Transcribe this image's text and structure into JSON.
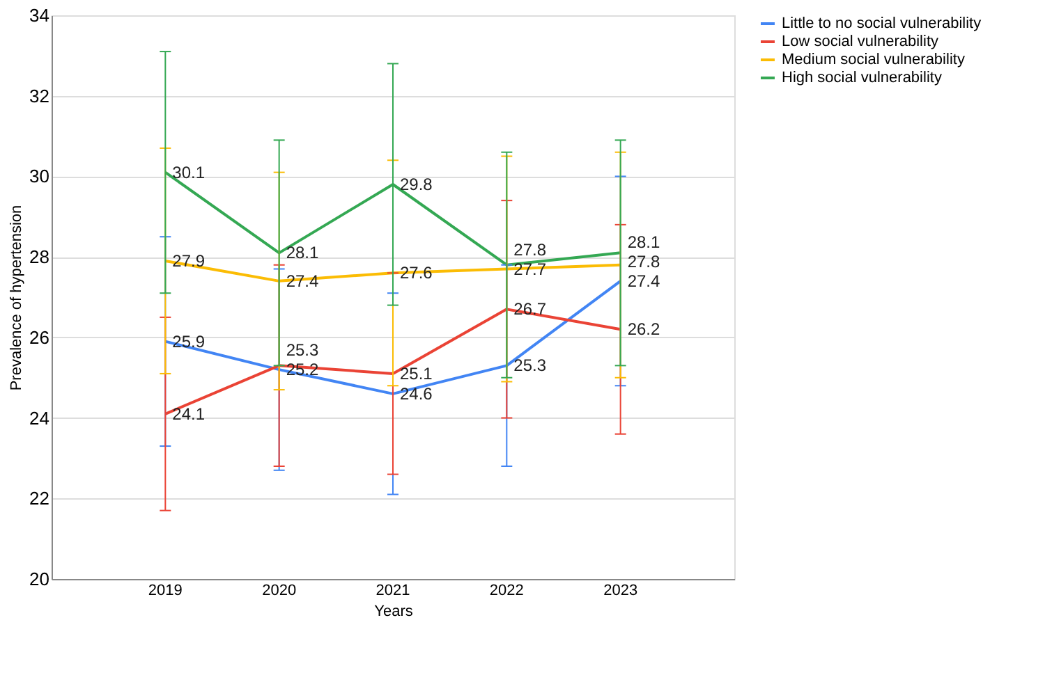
{
  "chart_data": {
    "type": "line",
    "xlabel": "Years",
    "ylabel": "Prevalence of hypertension",
    "categories": [
      "2019",
      "2020",
      "2021",
      "2022",
      "2023"
    ],
    "series": [
      {
        "name": "Little to no social vulnerability",
        "color": "#4285f4",
        "values": [
          25.9,
          25.2,
          24.6,
          25.3,
          27.4
        ],
        "errors": [
          2.6,
          2.5,
          2.5,
          2.5,
          2.6
        ]
      },
      {
        "name": "Low social vulnerability",
        "color": "#ea4335",
        "values": [
          24.1,
          25.3,
          25.1,
          26.7,
          26.2
        ],
        "errors": [
          2.4,
          2.5,
          2.5,
          2.7,
          2.6
        ]
      },
      {
        "name": "Medium social vulnerability",
        "color": "#fbbc04",
        "values": [
          27.9,
          27.4,
          27.6,
          27.7,
          27.8
        ],
        "errors": [
          2.8,
          2.7,
          2.8,
          2.8,
          2.8
        ]
      },
      {
        "name": "High social vulnerability",
        "color": "#34a853",
        "values": [
          30.1,
          28.1,
          29.8,
          27.8,
          28.1
        ],
        "errors": [
          3.0,
          2.8,
          3.0,
          2.8,
          2.8
        ]
      }
    ],
    "ylim": [
      20,
      34
    ],
    "yticks": [
      20,
      22,
      24,
      26,
      28,
      30,
      32,
      34
    ],
    "grid": "y",
    "legend": "right",
    "data_labels": true
  }
}
